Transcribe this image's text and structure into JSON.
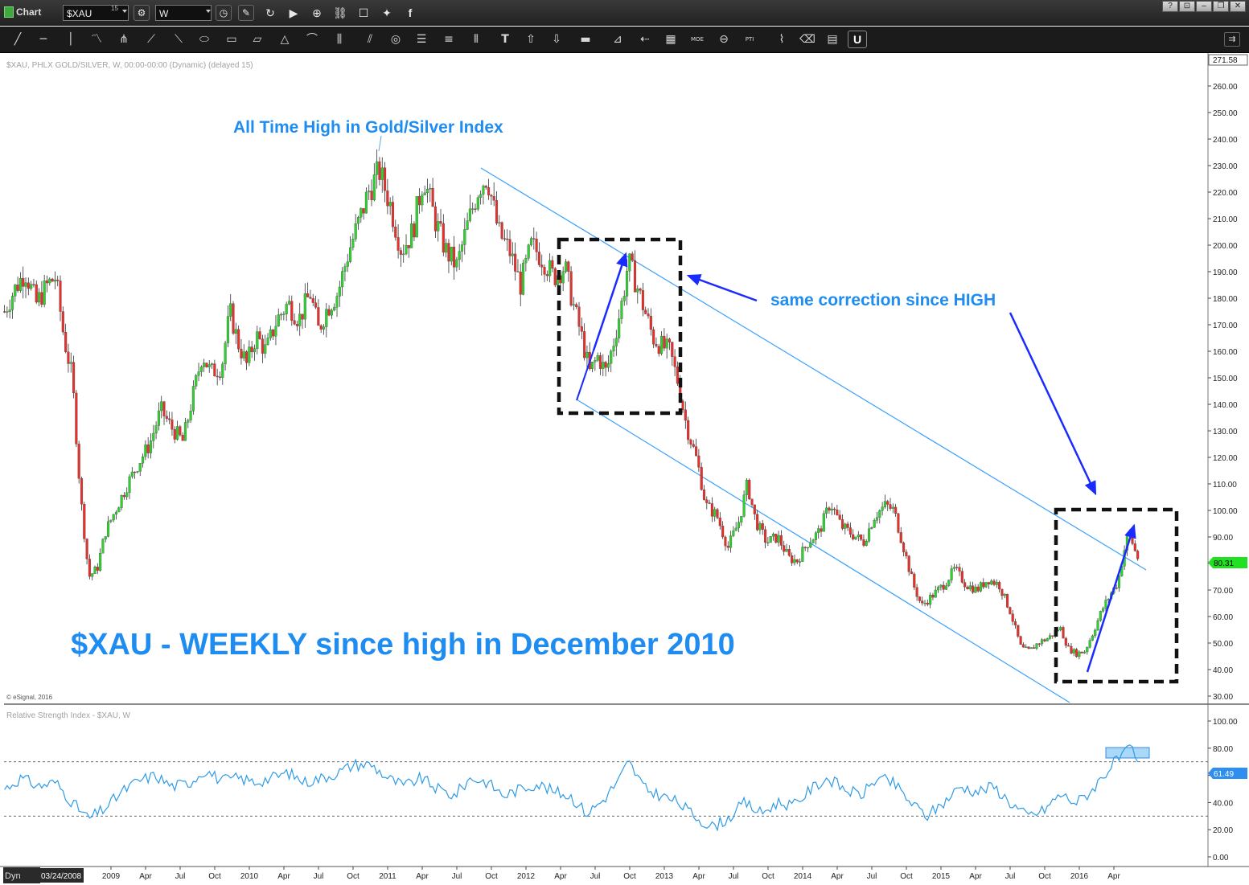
{
  "window": {
    "app_title": "Chart",
    "symbol": "$XAU",
    "symbol_superscript": "15",
    "interval": "W"
  },
  "toolbar": {
    "icons": [
      "trend-line-icon",
      "horizontal-line-icon",
      "vertical-line-icon",
      "wave-icon",
      "pitchfork-icon",
      "gann-fan-icon",
      "fib-fan-icon",
      "ellipse-icon",
      "rectangle-icon",
      "parallelogram-icon",
      "triangle-icon",
      "arc-icon",
      "cycle-icon",
      "parallel-channel-icon",
      "fib-circle-icon",
      "fib-retracement-icon",
      "fib-extension-icon",
      "time-zones-icon",
      "text-icon",
      "arrow-up-icon",
      "arrow-down-icon",
      "marker-icon",
      "gann-square-icon",
      "fib-speed-icon",
      "grid-icon",
      "moe-icon",
      "ellipse-count-icon",
      "pti-icon",
      "zigzag-icon",
      "eraser-icon",
      "snapshot-icon",
      "magnet-icon"
    ],
    "labels": {
      "text_tool": "T",
      "moe": "MOE",
      "pti": "PTI",
      "magnet": "U"
    }
  },
  "chart_data": {
    "type": "candlestick",
    "title": "$XAU - WEEKLY since high in December 2010",
    "header_text": "$XAU, PHLX GOLD/SILVER, W, 00:00-00:00 (Dynamic) (delayed 15)",
    "copyright": "© eSignal, 2016",
    "last_price": "80.31",
    "scale_top_label": "271.58",
    "ylim": [
      27,
      276
    ],
    "y_ticks": [
      "260.00",
      "250.00",
      "240.00",
      "230.00",
      "220.00",
      "210.00",
      "200.00",
      "190.00",
      "180.00",
      "170.00",
      "160.00",
      "150.00",
      "140.00",
      "130.00",
      "120.00",
      "110.00",
      "100.00",
      "90.00",
      "80.00",
      "70.00",
      "60.00",
      "50.00",
      "40.00",
      "30.00"
    ],
    "x_ticks": [
      "2009",
      "Apr",
      "Jul",
      "Oct",
      "2010",
      "Apr",
      "Jul",
      "Oct",
      "2011",
      "Apr",
      "Jul",
      "Oct",
      "2012",
      "Apr",
      "Jul",
      "Oct",
      "2013",
      "Apr",
      "Jul",
      "Oct",
      "2014",
      "Apr",
      "Jul",
      "Oct",
      "2015",
      "Apr",
      "Jul",
      "Oct",
      "2016",
      "Apr"
    ],
    "x_start_label": "03/24/2008",
    "dyn_label": "Dyn",
    "annotations": {
      "ath": "All Time High in Gold/Silver Index",
      "correction": "same correction since HIGH"
    },
    "closes": [
      [
        2008.23,
        175
      ],
      [
        2008.3,
        183
      ],
      [
        2008.38,
        190
      ],
      [
        2008.46,
        178
      ],
      [
        2008.54,
        185
      ],
      [
        2008.6,
        188
      ],
      [
        2008.66,
        165
      ],
      [
        2008.72,
        150
      ],
      [
        2008.78,
        105
      ],
      [
        2008.84,
        75
      ],
      [
        2008.9,
        78
      ],
      [
        2008.96,
        92
      ],
      [
        2009.04,
        101
      ],
      [
        2009.12,
        110
      ],
      [
        2009.2,
        118
      ],
      [
        2009.28,
        125
      ],
      [
        2009.36,
        138
      ],
      [
        2009.44,
        131
      ],
      [
        2009.52,
        126
      ],
      [
        2009.6,
        145
      ],
      [
        2009.66,
        159
      ],
      [
        2009.72,
        152
      ],
      [
        2009.8,
        154
      ],
      [
        2009.86,
        175
      ],
      [
        2009.92,
        163
      ],
      [
        2009.98,
        155
      ],
      [
        2010.05,
        166
      ],
      [
        2010.12,
        160
      ],
      [
        2010.2,
        172
      ],
      [
        2010.28,
        178
      ],
      [
        2010.36,
        172
      ],
      [
        2010.44,
        182
      ],
      [
        2010.5,
        168
      ],
      [
        2010.56,
        176
      ],
      [
        2010.64,
        182
      ],
      [
        2010.72,
        198
      ],
      [
        2010.8,
        210
      ],
      [
        2010.86,
        220
      ],
      [
        2010.94,
        228
      ],
      [
        2011.02,
        215
      ],
      [
        2011.1,
        198
      ],
      [
        2011.18,
        205
      ],
      [
        2011.26,
        226
      ],
      [
        2011.34,
        210
      ],
      [
        2011.42,
        198
      ],
      [
        2011.5,
        192
      ],
      [
        2011.58,
        208
      ],
      [
        2011.66,
        222
      ],
      [
        2011.72,
        226
      ],
      [
        2011.8,
        205
      ],
      [
        2011.88,
        198
      ],
      [
        2011.96,
        185
      ],
      [
        2012.04,
        200
      ],
      [
        2012.12,
        195
      ],
      [
        2012.2,
        188
      ],
      [
        2012.28,
        192
      ],
      [
        2012.34,
        178
      ],
      [
        2012.4,
        166
      ],
      [
        2012.46,
        152
      ],
      [
        2012.52,
        158
      ],
      [
        2012.58,
        152
      ],
      [
        2012.64,
        165
      ],
      [
        2012.7,
        180
      ],
      [
        2012.74,
        194
      ],
      [
        2012.8,
        185
      ],
      [
        2012.86,
        175
      ],
      [
        2012.92,
        165
      ],
      [
        2012.98,
        162
      ],
      [
        2013.04,
        160
      ],
      [
        2013.1,
        148
      ],
      [
        2013.16,
        132
      ],
      [
        2013.24,
        118
      ],
      [
        2013.3,
        102
      ],
      [
        2013.38,
        98
      ],
      [
        2013.46,
        86
      ],
      [
        2013.54,
        96
      ],
      [
        2013.6,
        110
      ],
      [
        2013.66,
        96
      ],
      [
        2013.74,
        88
      ],
      [
        2013.82,
        90
      ],
      [
        2013.9,
        82
      ],
      [
        2013.96,
        81
      ],
      [
        2014.04,
        88
      ],
      [
        2014.12,
        92
      ],
      [
        2014.2,
        103
      ],
      [
        2014.28,
        94
      ],
      [
        2014.36,
        91
      ],
      [
        2014.44,
        88
      ],
      [
        2014.52,
        98
      ],
      [
        2014.6,
        102
      ],
      [
        2014.66,
        100
      ],
      [
        2014.72,
        88
      ],
      [
        2014.8,
        72
      ],
      [
        2014.86,
        64
      ],
      [
        2014.94,
        68
      ],
      [
        2015.02,
        72
      ],
      [
        2015.1,
        78
      ],
      [
        2015.18,
        72
      ],
      [
        2015.26,
        70
      ],
      [
        2015.34,
        74
      ],
      [
        2015.42,
        72
      ],
      [
        2015.5,
        62
      ],
      [
        2015.58,
        48
      ],
      [
        2015.64,
        47
      ],
      [
        2015.7,
        50
      ],
      [
        2015.78,
        52
      ],
      [
        2015.86,
        56
      ],
      [
        2015.92,
        48
      ],
      [
        2015.98,
        46
      ],
      [
        2016.04,
        47
      ],
      [
        2016.1,
        54
      ],
      [
        2016.16,
        62
      ],
      [
        2016.22,
        68
      ],
      [
        2016.28,
        73
      ],
      [
        2016.32,
        84
      ],
      [
        2016.36,
        92
      ],
      [
        2016.4,
        85
      ],
      [
        2016.44,
        80
      ]
    ],
    "rsi": {
      "label": "Relative Strength Index - $XAU, W",
      "last_value": "61.49",
      "ylim": [
        -5,
        110
      ],
      "y_ticks": [
        "100.00",
        "80.00",
        "60.00",
        "40.00",
        "20.00",
        "0.00"
      ],
      "bands": [
        70,
        30
      ],
      "values": [
        [
          2008.23,
          50
        ],
        [
          2008.35,
          58
        ],
        [
          2008.48,
          52
        ],
        [
          2008.6,
          55
        ],
        [
          2008.72,
          40
        ],
        [
          2008.84,
          28
        ],
        [
          2008.96,
          36
        ],
        [
          2009.08,
          48
        ],
        [
          2009.2,
          56
        ],
        [
          2009.32,
          60
        ],
        [
          2009.44,
          52
        ],
        [
          2009.56,
          54
        ],
        [
          2009.68,
          64
        ],
        [
          2009.8,
          56
        ],
        [
          2009.92,
          58
        ],
        [
          2010.04,
          55
        ],
        [
          2010.16,
          58
        ],
        [
          2010.28,
          62
        ],
        [
          2010.4,
          55
        ],
        [
          2010.52,
          58
        ],
        [
          2010.64,
          62
        ],
        [
          2010.76,
          68
        ],
        [
          2010.88,
          68
        ],
        [
          2011.0,
          58
        ],
        [
          2011.12,
          52
        ],
        [
          2011.24,
          58
        ],
        [
          2011.36,
          50
        ],
        [
          2011.48,
          45
        ],
        [
          2011.6,
          58
        ],
        [
          2011.72,
          55
        ],
        [
          2011.84,
          45
        ],
        [
          2011.96,
          50
        ],
        [
          2012.08,
          54
        ],
        [
          2012.2,
          48
        ],
        [
          2012.32,
          45
        ],
        [
          2012.44,
          32
        ],
        [
          2012.56,
          42
        ],
        [
          2012.68,
          58
        ],
        [
          2012.74,
          70
        ],
        [
          2012.86,
          50
        ],
        [
          2012.98,
          45
        ],
        [
          2013.1,
          40
        ],
        [
          2013.22,
          30
        ],
        [
          2013.34,
          22
        ],
        [
          2013.46,
          28
        ],
        [
          2013.58,
          40
        ],
        [
          2013.7,
          32
        ],
        [
          2013.82,
          40
        ],
        [
          2013.94,
          38
        ],
        [
          2014.06,
          50
        ],
        [
          2014.18,
          58
        ],
        [
          2014.3,
          50
        ],
        [
          2014.42,
          45
        ],
        [
          2014.54,
          58
        ],
        [
          2014.66,
          54
        ],
        [
          2014.78,
          40
        ],
        [
          2014.9,
          30
        ],
        [
          2015.02,
          40
        ],
        [
          2015.14,
          52
        ],
        [
          2015.26,
          48
        ],
        [
          2015.38,
          52
        ],
        [
          2015.5,
          40
        ],
        [
          2015.62,
          30
        ],
        [
          2015.74,
          34
        ],
        [
          2015.86,
          46
        ],
        [
          2015.98,
          40
        ],
        [
          2016.08,
          48
        ],
        [
          2016.16,
          58
        ],
        [
          2016.24,
          68
        ],
        [
          2016.32,
          75
        ],
        [
          2016.38,
          80
        ],
        [
          2016.44,
          62
        ]
      ]
    }
  }
}
